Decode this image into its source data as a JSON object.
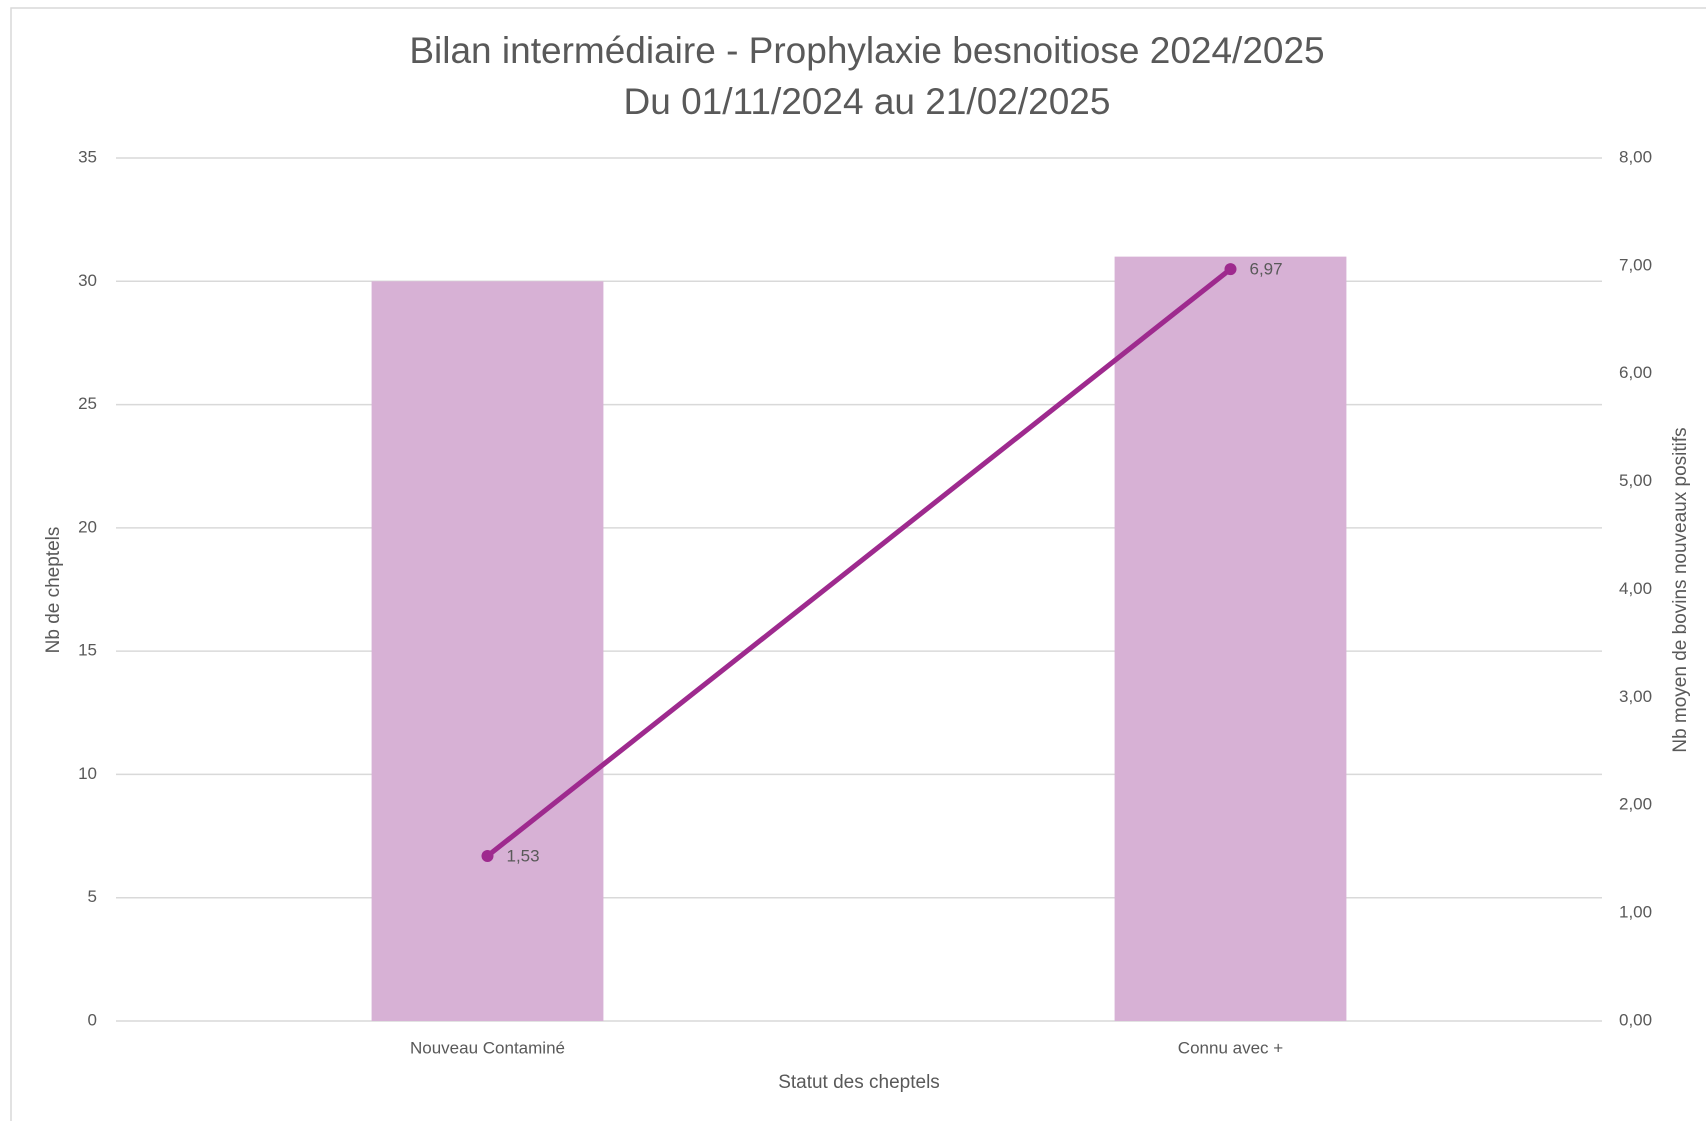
{
  "chart_data": {
    "type": "bar",
    "title": "Bilan intermédiaire - Prophylaxie besnoitiose 2024/2025",
    "subtitle": "Du 01/11/2024 au 21/02/2025",
    "x_label": "Statut des cheptels",
    "y_label": "Nb de cheptels",
    "y2_label": "Nb moyen de bovins nouveaux positifs",
    "categories": [
      "Nouveau Contaminé",
      "Connu avec +"
    ],
    "series": [
      {
        "type": "bar",
        "color": "#d7b1d5",
        "values": [
          30,
          31
        ]
      },
      {
        "type": "line",
        "axis": "y2",
        "color": "#9e2a8e",
        "values": [
          1.53,
          6.97
        ],
        "value_labels": [
          "1,53",
          "6,97"
        ]
      }
    ],
    "ylim": [
      0,
      35
    ],
    "yticks": [
      0,
      5,
      10,
      15,
      20,
      25,
      30,
      35
    ],
    "y2lim": [
      0,
      8
    ],
    "y2ticks": [
      {
        "value": 0,
        "label": "0,00"
      },
      {
        "value": 1,
        "label": "1,00"
      },
      {
        "value": 2,
        "label": "2,00"
      },
      {
        "value": 3,
        "label": "3,00"
      },
      {
        "value": 4,
        "label": "4,00"
      },
      {
        "value": 5,
        "label": "5,00"
      },
      {
        "value": 6,
        "label": "6,00"
      },
      {
        "value": 7,
        "label": "7,00"
      },
      {
        "value": 8,
        "label": "8,00"
      }
    ],
    "grid": true
  }
}
